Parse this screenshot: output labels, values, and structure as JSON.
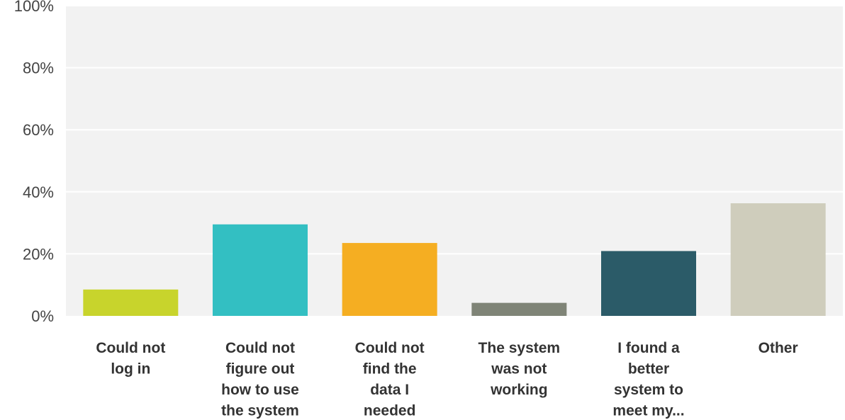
{
  "chart_data": {
    "type": "bar",
    "categories": [
      [
        "Could not",
        "log in"
      ],
      [
        "Could not",
        "figure out",
        "how to use",
        "the system"
      ],
      [
        "Could not",
        "find the",
        "data I",
        "needed"
      ],
      [
        "The system",
        "was not",
        "working"
      ],
      [
        "I found a",
        "better",
        "system to",
        "meet my..."
      ],
      [
        "Other"
      ]
    ],
    "values": [
      8.5,
      29.5,
      23.5,
      4.2,
      20.9,
      36.3
    ],
    "colors": [
      "#c8d42c",
      "#33bfc2",
      "#f5ae22",
      "#7f8477",
      "#2b5b68",
      "#cfcdbc"
    ],
    "y_ticks": [
      "0%",
      "20%",
      "40%",
      "60%",
      "80%",
      "100%"
    ],
    "ylim": [
      0,
      100
    ],
    "grid": true,
    "background": "#f2f2f2"
  }
}
